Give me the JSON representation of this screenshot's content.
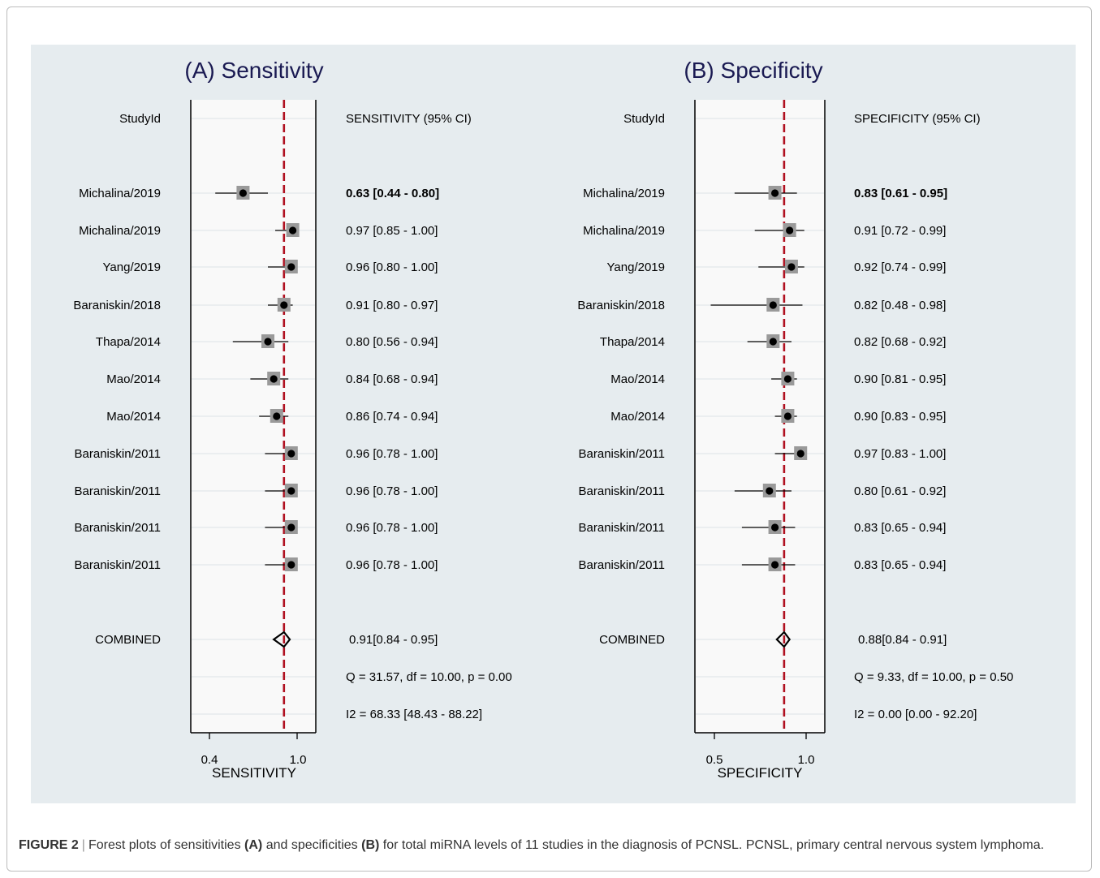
{
  "colors": {
    "background": "#e6ecef",
    "panel": "#f9f9f9",
    "title_text": "#1a1a52",
    "reference_line": "#b01020",
    "box_fill": "#9a9a9a",
    "gridline": "#dde3e7"
  },
  "chart_data": [
    {
      "type": "forest",
      "title": "(A) Sensitivity",
      "xlabel": "SENSITIVITY",
      "xlim": [
        0.4,
        1.0
      ],
      "xticks": [
        "0.4",
        "1.0"
      ],
      "study_col_header": "StudyId",
      "value_col_header": "SENSITIVITY (95% CI)",
      "reference": 0.91,
      "studies": [
        {
          "name": "Michalina/2019",
          "est": 0.63,
          "lo": 0.44,
          "hi": 0.8,
          "label": "0.63 [0.44 - 0.80]",
          "bold": true
        },
        {
          "name": "Michalina/2019",
          "est": 0.97,
          "lo": 0.85,
          "hi": 1.0,
          "label": "0.97 [0.85 - 1.00]"
        },
        {
          "name": "Yang/2019",
          "est": 0.96,
          "lo": 0.8,
          "hi": 1.0,
          "label": "0.96 [0.80 - 1.00]"
        },
        {
          "name": "Baraniskin/2018",
          "est": 0.91,
          "lo": 0.8,
          "hi": 0.97,
          "label": "0.91 [0.80 - 0.97]"
        },
        {
          "name": "Thapa/2014",
          "est": 0.8,
          "lo": 0.56,
          "hi": 0.94,
          "label": "0.80 [0.56 - 0.94]"
        },
        {
          "name": "Mao/2014",
          "est": 0.84,
          "lo": 0.68,
          "hi": 0.94,
          "label": "0.84 [0.68 - 0.94]"
        },
        {
          "name": "Mao/2014",
          "est": 0.86,
          "lo": 0.74,
          "hi": 0.94,
          "label": "0.86 [0.74 - 0.94]"
        },
        {
          "name": "Baraniskin/2011",
          "est": 0.96,
          "lo": 0.78,
          "hi": 1.0,
          "label": "0.96 [0.78 - 1.00]"
        },
        {
          "name": "Baraniskin/2011",
          "est": 0.96,
          "lo": 0.78,
          "hi": 1.0,
          "label": "0.96 [0.78 - 1.00]"
        },
        {
          "name": "Baraniskin/2011",
          "est": 0.96,
          "lo": 0.78,
          "hi": 1.0,
          "label": "0.96 [0.78 - 1.00]"
        },
        {
          "name": "Baraniskin/2011",
          "est": 0.96,
          "lo": 0.78,
          "hi": 1.0,
          "label": "0.96 [0.78 - 1.00]"
        }
      ],
      "combined": {
        "name": "COMBINED",
        "est": 0.91,
        "lo": 0.84,
        "hi": 0.95,
        "label": "0.91[0.84 - 0.95]"
      },
      "stats": [
        "Q = 31.57, df = 10.00, p =  0.00",
        "I2 = 68.33 [48.43 - 88.22]"
      ]
    },
    {
      "type": "forest",
      "title": "(B) Specificity",
      "xlabel": "SPECIFICITY",
      "xlim": [
        0.5,
        1.0
      ],
      "xticks": [
        "0.5",
        "1.0"
      ],
      "study_col_header": "StudyId",
      "value_col_header": "SPECIFICITY (95% CI)",
      "reference": 0.88,
      "studies": [
        {
          "name": "Michalina/2019",
          "est": 0.83,
          "lo": 0.61,
          "hi": 0.95,
          "label": "0.83 [0.61 - 0.95]",
          "bold": true
        },
        {
          "name": "Michalina/2019",
          "est": 0.91,
          "lo": 0.72,
          "hi": 0.99,
          "label": "0.91 [0.72 - 0.99]"
        },
        {
          "name": "Yang/2019",
          "est": 0.92,
          "lo": 0.74,
          "hi": 0.99,
          "label": "0.92 [0.74 - 0.99]"
        },
        {
          "name": "Baraniskin/2018",
          "est": 0.82,
          "lo": 0.48,
          "hi": 0.98,
          "label": "0.82 [0.48 - 0.98]"
        },
        {
          "name": "Thapa/2014",
          "est": 0.82,
          "lo": 0.68,
          "hi": 0.92,
          "label": "0.82 [0.68 - 0.92]"
        },
        {
          "name": "Mao/2014",
          "est": 0.9,
          "lo": 0.81,
          "hi": 0.95,
          "label": "0.90 [0.81 - 0.95]"
        },
        {
          "name": "Mao/2014",
          "est": 0.9,
          "lo": 0.83,
          "hi": 0.95,
          "label": "0.90 [0.83 - 0.95]"
        },
        {
          "name": "Baraniskin/2011",
          "est": 0.97,
          "lo": 0.83,
          "hi": 1.0,
          "label": "0.97 [0.83 - 1.00]"
        },
        {
          "name": "Baraniskin/2011",
          "est": 0.8,
          "lo": 0.61,
          "hi": 0.92,
          "label": "0.80 [0.61 - 0.92]"
        },
        {
          "name": "Baraniskin/2011",
          "est": 0.83,
          "lo": 0.65,
          "hi": 0.94,
          "label": "0.83 [0.65 - 0.94]"
        },
        {
          "name": "Baraniskin/2011",
          "est": 0.83,
          "lo": 0.65,
          "hi": 0.94,
          "label": "0.83 [0.65 - 0.94]"
        }
      ],
      "combined": {
        "name": "COMBINED",
        "est": 0.88,
        "lo": 0.84,
        "hi": 0.91,
        "label": "0.88[0.84 - 0.91]"
      },
      "stats": [
        "Q =  9.33, df = 10.00, p =  0.50",
        "I2 = 0.00 [0.00 - 92.20]"
      ]
    }
  ],
  "caption": {
    "figure_label": "FIGURE 2",
    "separator": "|",
    "part1": "Forest plots of sensitivities",
    "a_label": "(A)",
    "part2": "and specificities",
    "b_label": "(B)",
    "part3": "for total miRNA levels of 11 studies in the diagnosis of PCNSL. PCNSL, primary central nervous system lymphoma."
  }
}
